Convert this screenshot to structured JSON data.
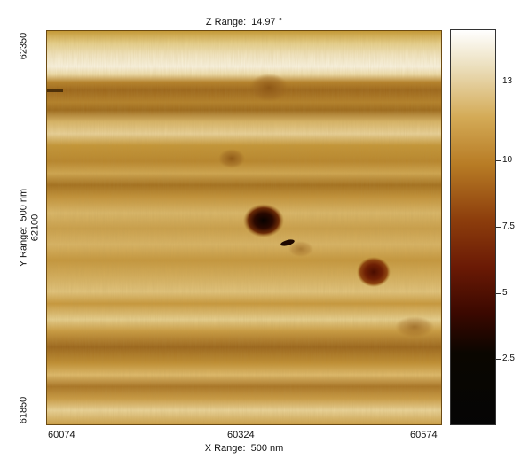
{
  "z_range": {
    "label": "Z Range:",
    "value": "14.97 °"
  },
  "x_range": {
    "label": "X Range:",
    "value": "500 nm"
  },
  "y_range": {
    "label": "Y Range:",
    "value": "500 nm"
  },
  "x_ticks": [
    "60074",
    "60324",
    "60574"
  ],
  "y_ticks": [
    "62350",
    "62100",
    "61850"
  ],
  "colorbar": {
    "min": 0,
    "max": 14.97,
    "tick_values": [
      2.5,
      5,
      7.5,
      10,
      13
    ],
    "tick_labels": [
      "2.5",
      "5",
      "7.5",
      "10",
      "13"
    ]
  }
}
